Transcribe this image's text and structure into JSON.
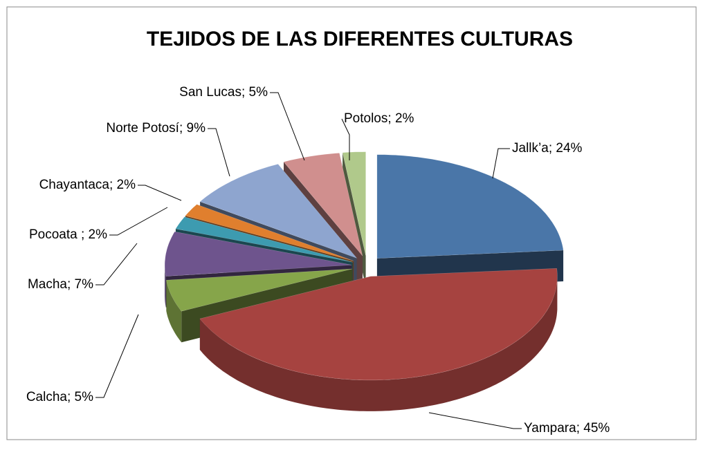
{
  "chart_data": {
    "type": "pie",
    "title": "TEJIDOS DE LAS DIFERENTES CULTURAS",
    "categories": [
      "Jallk’a",
      "Yampara",
      "Calcha",
      "Macha",
      "Pocoata ",
      "Chayantaca",
      "Norte Potosí",
      "San Lucas",
      "Potolos"
    ],
    "values": [
      24,
      45,
      5,
      7,
      2,
      2,
      9,
      5,
      2
    ],
    "value_labels": [
      "24%",
      "45%",
      "5%",
      "7%",
      "2%",
      "2%",
      "9%",
      "5%",
      "2%"
    ],
    "colors": [
      "#4a76a8",
      "#a64340",
      "#86a54a",
      "#6e548d",
      "#3d9bb0",
      "#e07f2e",
      "#8ea5cf",
      "#d08f8e",
      "#b0c98b"
    ]
  }
}
